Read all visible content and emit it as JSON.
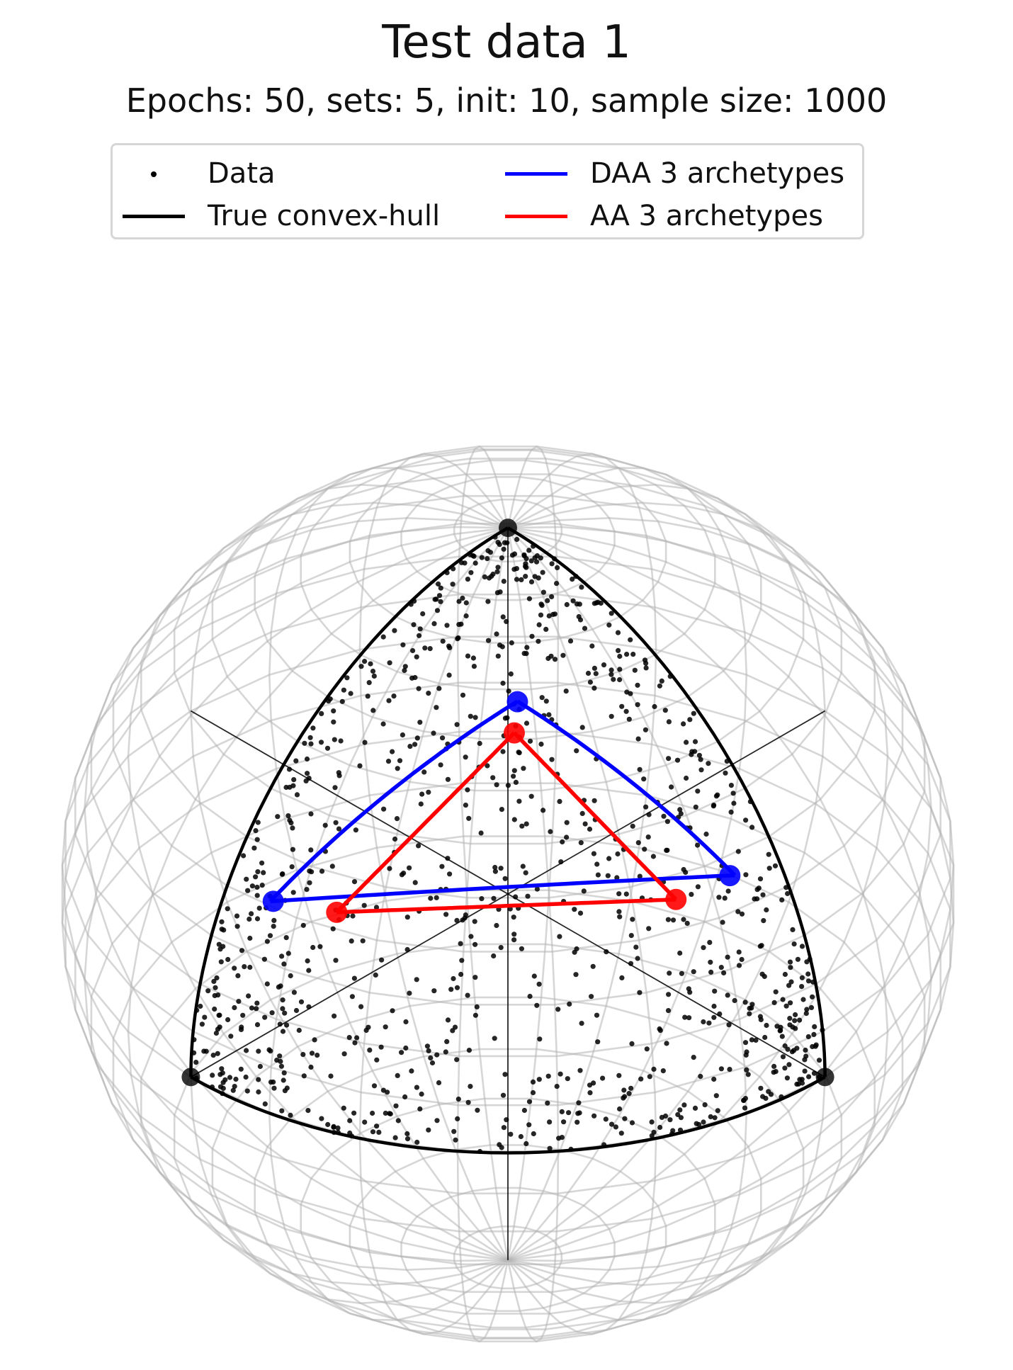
{
  "chart_data": {
    "type": "scatter",
    "title": "Test data 1",
    "subtitle": "Epochs: 50, sets: 5, init: 10, sample size: 1000",
    "legend_position": "top-center",
    "legend": [
      {
        "label": "Data",
        "kind": "marker",
        "color": "#000000"
      },
      {
        "label": "True convex-hull",
        "kind": "line",
        "color": "#000000"
      },
      {
        "label": "DAA 3 archetypes",
        "kind": "line",
        "color": "#0000ff"
      },
      {
        "label": "AA 3 archetypes",
        "kind": "line",
        "color": "#ff0000"
      }
    ],
    "sample_size": 1000,
    "true_vertices": [
      [
        1,
        0,
        0
      ],
      [
        0,
        1,
        0
      ],
      [
        0,
        0,
        1
      ]
    ],
    "daa_archetypes": [
      [
        0.86,
        0.12,
        0.47
      ],
      [
        0.12,
        0.82,
        0.52
      ],
      [
        0.33,
        0.36,
        0.87
      ]
    ],
    "aa_archetypes": [
      [
        0.72,
        0.18,
        0.4
      ],
      [
        0.17,
        0.7,
        0.42
      ],
      [
        0.3,
        0.32,
        0.75
      ]
    ],
    "grid": true,
    "colors": {
      "data": "#000000",
      "hull": "#000000",
      "daa": "#0000ff",
      "aa": "#ff0000",
      "sphere": "#b4b4b4"
    }
  }
}
